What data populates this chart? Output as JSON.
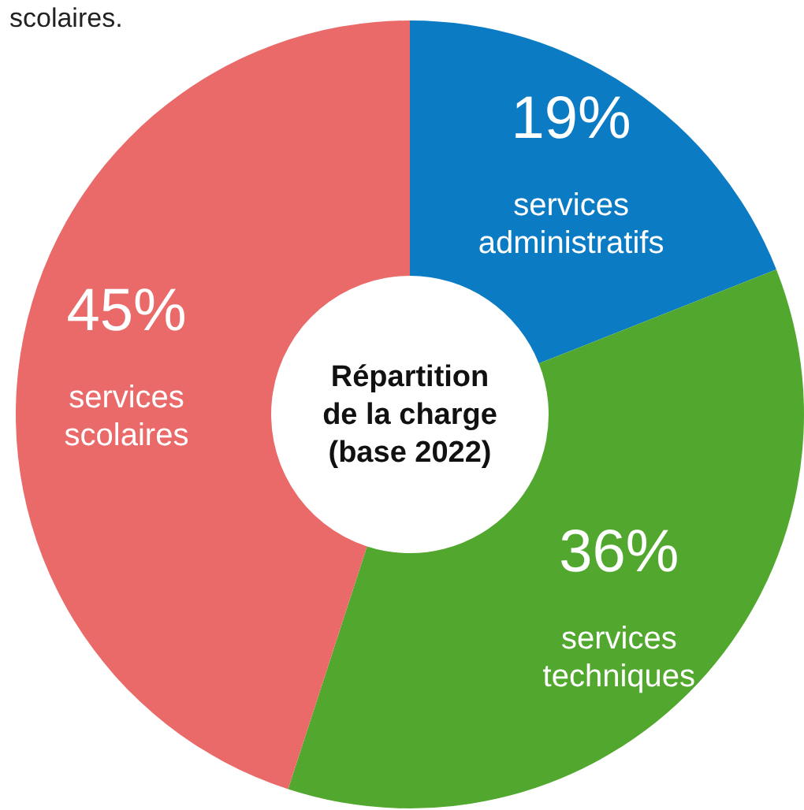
{
  "chart_data": {
    "type": "donut",
    "title": "Répartition\nde la charge\n(base 2022)",
    "categories": [
      "services administratifs",
      "services techniques",
      "services scolaires"
    ],
    "values": [
      19,
      36,
      45
    ],
    "colors": [
      "#0b7bc4",
      "#52a82f",
      "#e96a69"
    ],
    "value_labels": [
      "19%",
      "36%",
      "45%"
    ],
    "annotations": [
      "scolaires."
    ]
  }
}
